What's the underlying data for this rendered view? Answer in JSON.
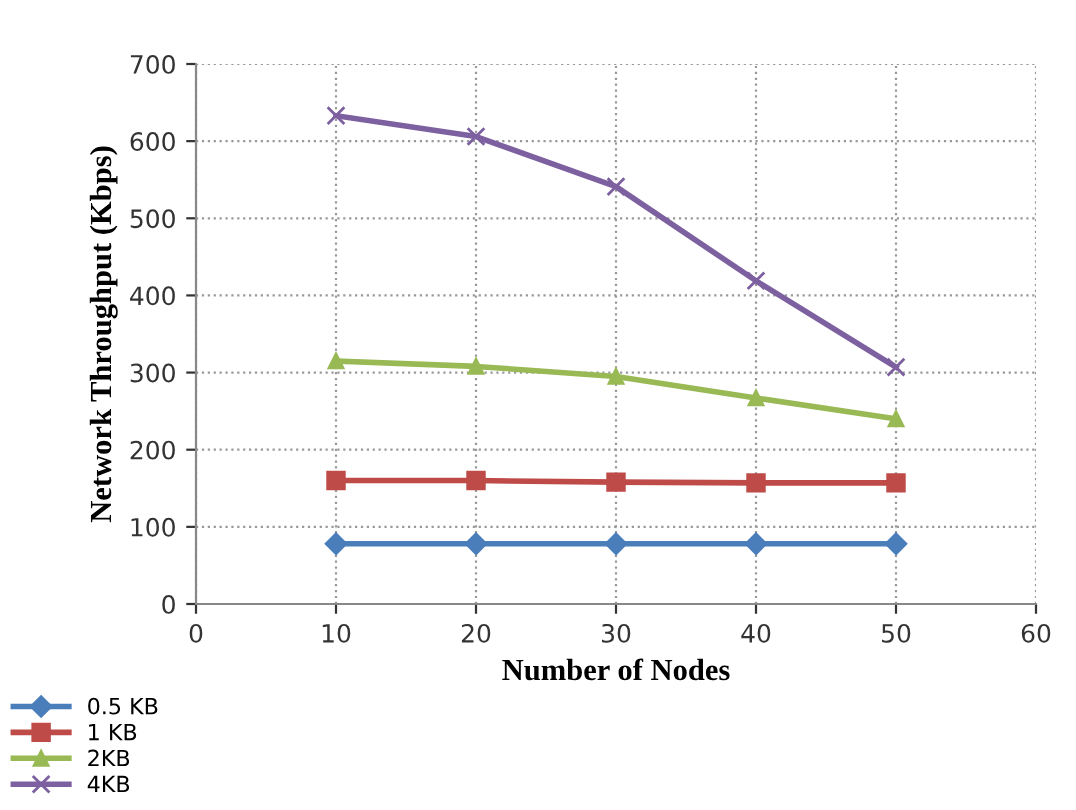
{
  "chart_data": {
    "type": "line",
    "xlabel": "Number of Nodes",
    "ylabel": "Network Throughput (Kbps)",
    "x": [
      10,
      20,
      30,
      40,
      50
    ],
    "series": [
      {
        "name": "0.5 KB",
        "color": "#4a7ebb",
        "marker": "diamond",
        "values": [
          78,
          78,
          78,
          78,
          78
        ]
      },
      {
        "name": "1 KB",
        "color": "#be4b48",
        "marker": "square",
        "values": [
          160,
          160,
          158,
          157,
          157
        ]
      },
      {
        "name": "2KB",
        "color": "#98b954",
        "marker": "triangle",
        "values": [
          315,
          308,
          295,
          267,
          240
        ]
      },
      {
        "name": "4KB",
        "color": "#7d60a0",
        "marker": "cross",
        "values": [
          633,
          606,
          541,
          419,
          307
        ]
      }
    ],
    "xlim": [
      0,
      60
    ],
    "xticks": [
      0,
      10,
      20,
      30,
      40,
      50,
      60
    ],
    "ylim": [
      0,
      700
    ],
    "yticks": [
      0,
      100,
      200,
      300,
      400,
      500,
      600,
      700
    ],
    "grid": true,
    "legend": "bottom left"
  }
}
